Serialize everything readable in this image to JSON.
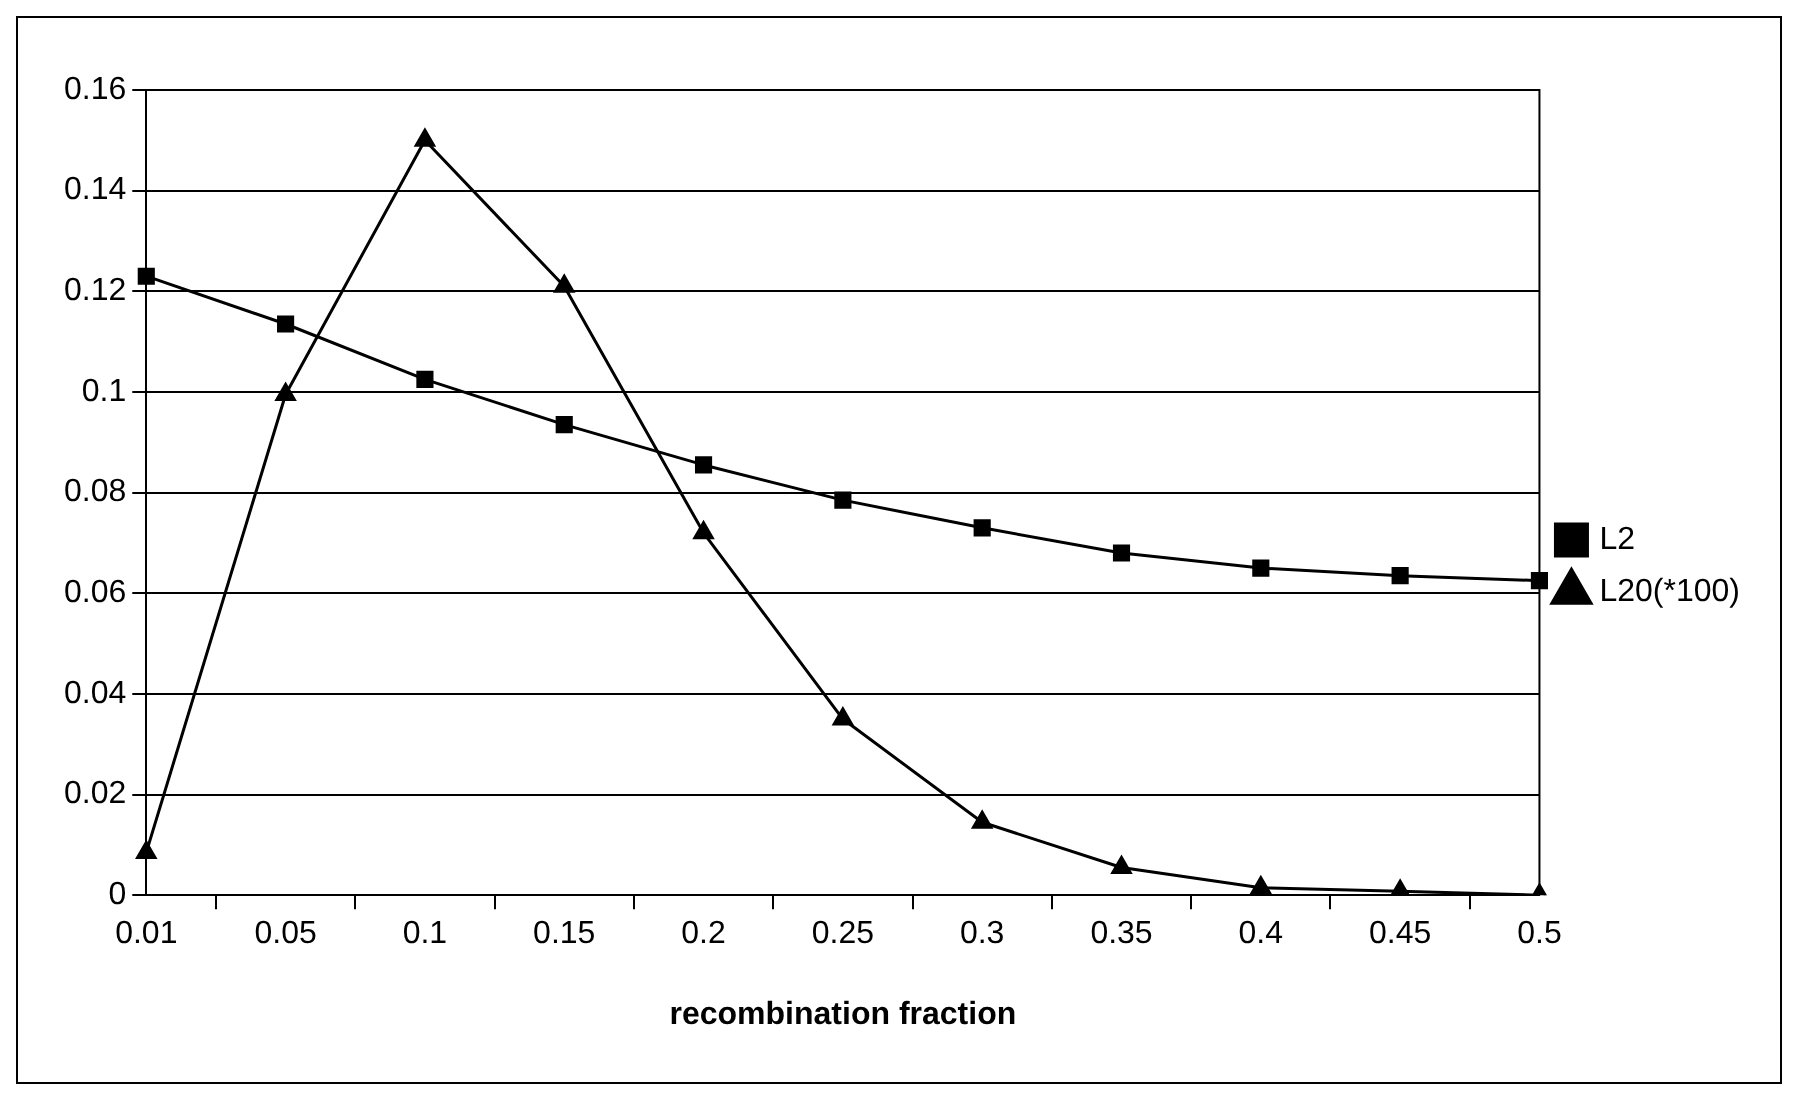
{
  "chart_data": {
    "type": "line",
    "xlabel": "recombination fraction",
    "categories": [
      "0.01",
      "0.05",
      "0.1",
      "0.15",
      "0.2",
      "0.25",
      "0.3",
      "0.35",
      "0.4",
      "0.45",
      "0.5"
    ],
    "series": [
      {
        "name": "L2",
        "color": "#000000",
        "marker": "square",
        "values": [
          0.123,
          0.1135,
          0.1025,
          0.0935,
          0.0855,
          0.0785,
          0.073,
          0.068,
          0.065,
          0.0635,
          0.0625
        ]
      },
      {
        "name": "L20(*100)",
        "color": "#000000",
        "marker": "triangle",
        "values": [
          0.0085,
          0.0995,
          0.15,
          0.121,
          0.072,
          0.035,
          0.0145,
          0.0055,
          0.0015,
          0.0008,
          0
        ]
      }
    ],
    "ylim": [
      0,
      0.16
    ],
    "yticks": [
      0,
      0.02,
      0.04,
      0.06,
      0.08,
      0.1,
      0.12,
      0.14,
      0.16
    ],
    "grid": "y",
    "legend": "right",
    "line_style": "solid"
  }
}
